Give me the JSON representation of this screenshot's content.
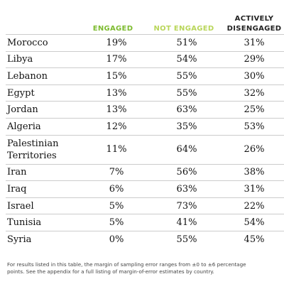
{
  "headers": {
    "engaged": "ENGAGED",
    "not_engaged": "NOT ENGAGED",
    "actively_disengaged_line1": "ACTIVELY",
    "actively_disengaged_line2": "DISENGAGED"
  },
  "colors": {
    "engaged": "#7dbb2f",
    "not_engaged": "#b9d65a",
    "actively_disengaged": "#222222"
  },
  "rows": [
    {
      "country": "Morocco",
      "engaged": "19%",
      "not_engaged": "51%",
      "actively_disengaged": "31%"
    },
    {
      "country": "Libya",
      "engaged": "17%",
      "not_engaged": "54%",
      "actively_disengaged": "29%"
    },
    {
      "country": "Lebanon",
      "engaged": "15%",
      "not_engaged": "55%",
      "actively_disengaged": "30%"
    },
    {
      "country": "Egypt",
      "engaged": "13%",
      "not_engaged": "55%",
      "actively_disengaged": "32%"
    },
    {
      "country": "Jordan",
      "engaged": "13%",
      "not_engaged": "63%",
      "actively_disengaged": "25%"
    },
    {
      "country": "Algeria",
      "engaged": "12%",
      "not_engaged": "35%",
      "actively_disengaged": "53%"
    },
    {
      "country_line1": "Palestinian",
      "country_line2": "Territories",
      "engaged": "11%",
      "not_engaged": "64%",
      "actively_disengaged": "26%"
    },
    {
      "country": "Iran",
      "engaged": "7%",
      "not_engaged": "56%",
      "actively_disengaged": "38%"
    },
    {
      "country": "Iraq",
      "engaged": "6%",
      "not_engaged": "63%",
      "actively_disengaged": "31%"
    },
    {
      "country": "Israel",
      "engaged": "5%",
      "not_engaged": "73%",
      "actively_disengaged": "22%"
    },
    {
      "country": "Tunisia",
      "engaged": "5%",
      "not_engaged": "41%",
      "actively_disengaged": "54%"
    },
    {
      "country": "Syria",
      "engaged": "0%",
      "not_engaged": "55%",
      "actively_disengaged": "45%"
    }
  ],
  "footnote": {
    "line1": "For results listed in this table, the margin of sampling error ranges from ±0 to ±6 percentage",
    "line2": "points. See the appendix for a full listing of margin-of-error estimates by country."
  }
}
